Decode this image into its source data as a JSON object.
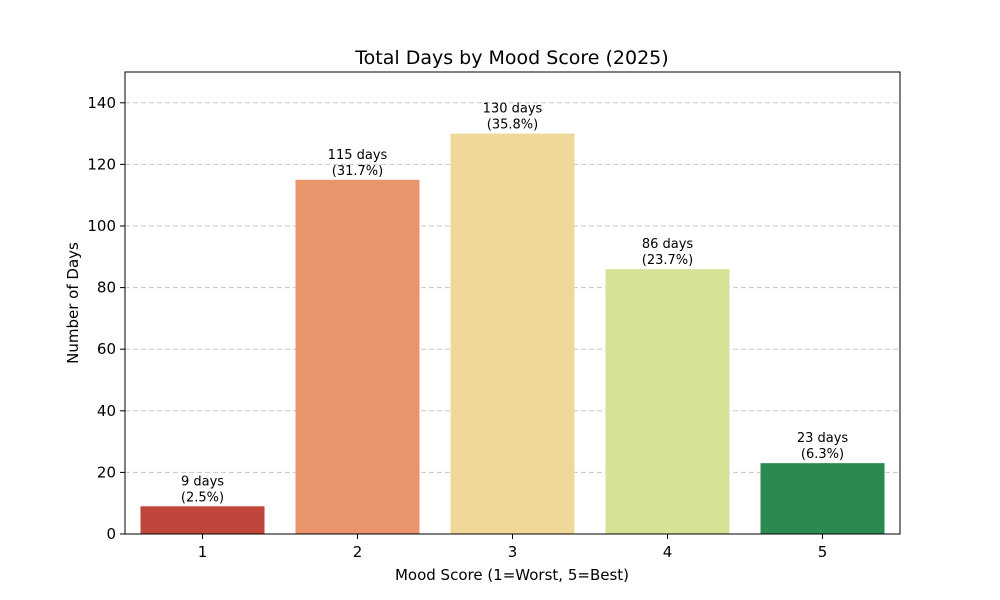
{
  "chart_data": {
    "type": "bar",
    "title": "Total Days by Mood Score (2025)",
    "xlabel": "Mood Score (1=Worst, 5=Best)",
    "ylabel": "Number of Days",
    "categories": [
      "1",
      "2",
      "3",
      "4",
      "5"
    ],
    "values": [
      9,
      115,
      130,
      86,
      23
    ],
    "data_labels": [
      [
        "9 days",
        "(2.5%)"
      ],
      [
        "115 days",
        "(31.7%)"
      ],
      [
        "130 days",
        "(35.8%)"
      ],
      [
        "86 days",
        "(23.7%)"
      ],
      [
        "23 days",
        "(6.3%)"
      ]
    ],
    "colors": [
      "#c0463c",
      "#e8956d",
      "#f0d898",
      "#d4e396",
      "#2b8a52"
    ],
    "ylim": [
      0,
      150
    ],
    "yticks": [
      0,
      20,
      40,
      60,
      80,
      100,
      120,
      140
    ],
    "grid": "y-dashed",
    "legend": "none"
  }
}
